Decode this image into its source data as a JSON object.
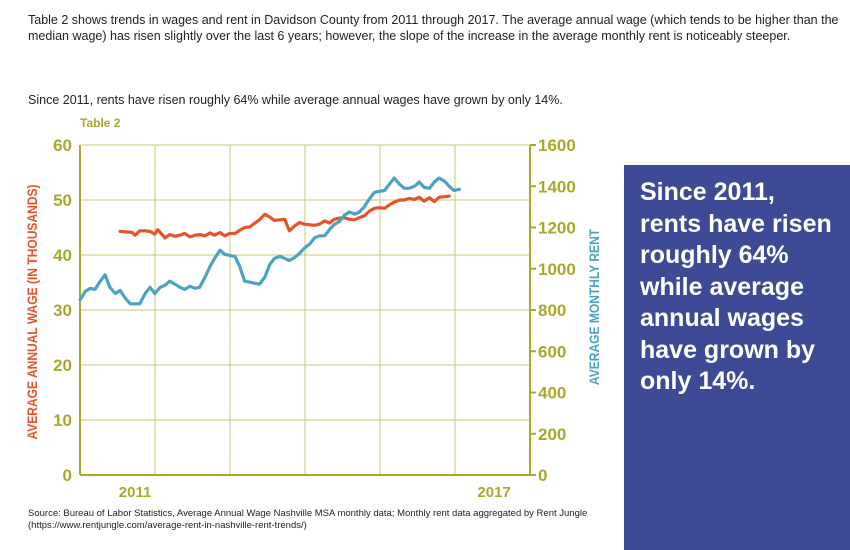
{
  "intro": {
    "paragraph1": "Table 2 shows trends in wages and rent in Davidson County from 2011 through 2017. The average annual wage (which tends to be higher than the median wage) has risen slightly over the last 6 years; however, the slope of the increase in the average monthly rent is noticeably steeper.",
    "paragraph2": "Since 2011, rents have risen roughly 64% while average annual wages have grown by only 14%."
  },
  "chart_label": "Table 2",
  "callout": "Since 2011, rents have risen roughly 64% while average annual wages have grown by only 14%.",
  "source": "Source: Bureau of Labor Statistics, Average Annual Wage Nashville MSA monthly data; Monthly rent data aggregated by Rent Jungle (https://www.rentjungle.com/average-rent-in-nashville-rent-trends/)",
  "colors": {
    "wage": "#e8522a",
    "rent": "#4aa3c0",
    "axis": "#a8a82a",
    "grid": "#c8c870",
    "callout_bg": "#3d4a96"
  },
  "chart_data": {
    "type": "line",
    "xlabel": "",
    "x_tick_labels": [
      "2011",
      "2017"
    ],
    "x_ticks": [
      2011.0,
      2017.0
    ],
    "xlim": [
      2010.08,
      2017.6
    ],
    "grid": true,
    "ylabel_left": "AVERAGE ANNUAL WAGE (IN THOUSANDS)",
    "ylim_left": [
      0,
      60
    ],
    "yticks_left": [
      0,
      10,
      20,
      30,
      40,
      50,
      60
    ],
    "ylabel_right": "AVERAGE MONTHLY RENT",
    "ylim_right": [
      0,
      1600
    ],
    "yticks_right": [
      0,
      200,
      400,
      600,
      800,
      1000,
      1200,
      1400,
      1600
    ],
    "series": [
      {
        "axis": "left",
        "color": "#e8522a",
        "points": [
          [
            2010.75,
            44.3
          ],
          [
            2010.85,
            44.2
          ],
          [
            2010.95,
            44.1
          ],
          [
            2011.0,
            43.6
          ],
          [
            2011.08,
            44.4
          ],
          [
            2011.17,
            44.4
          ],
          [
            2011.25,
            44.3
          ],
          [
            2011.33,
            43.8
          ],
          [
            2011.38,
            44.6
          ],
          [
            2011.5,
            43.1
          ],
          [
            2011.58,
            43.7
          ],
          [
            2011.67,
            43.4
          ],
          [
            2011.75,
            43.6
          ],
          [
            2011.83,
            43.9
          ],
          [
            2011.92,
            43.3
          ],
          [
            2012.0,
            43.6
          ],
          [
            2012.08,
            43.7
          ],
          [
            2012.17,
            43.5
          ],
          [
            2012.25,
            44.0
          ],
          [
            2012.33,
            43.6
          ],
          [
            2012.42,
            44.1
          ],
          [
            2012.5,
            43.5
          ],
          [
            2012.58,
            43.9
          ],
          [
            2012.67,
            43.9
          ],
          [
            2012.75,
            44.5
          ],
          [
            2012.83,
            45.0
          ],
          [
            2012.92,
            45.1
          ],
          [
            2013.0,
            45.8
          ],
          [
            2013.08,
            46.4
          ],
          [
            2013.17,
            47.4
          ],
          [
            2013.25,
            46.9
          ],
          [
            2013.33,
            46.3
          ],
          [
            2013.42,
            46.4
          ],
          [
            2013.5,
            46.5
          ],
          [
            2013.58,
            44.4
          ],
          [
            2013.67,
            45.3
          ],
          [
            2013.75,
            45.9
          ],
          [
            2013.83,
            45.6
          ],
          [
            2013.92,
            45.5
          ],
          [
            2014.0,
            45.4
          ],
          [
            2014.08,
            45.6
          ],
          [
            2014.17,
            46.2
          ],
          [
            2014.25,
            45.8
          ],
          [
            2014.33,
            46.5
          ],
          [
            2014.42,
            46.7
          ],
          [
            2014.5,
            46.8
          ],
          [
            2014.58,
            46.5
          ],
          [
            2014.67,
            46.4
          ],
          [
            2014.75,
            46.8
          ],
          [
            2014.83,
            47.1
          ],
          [
            2014.92,
            48.0
          ],
          [
            2015.0,
            48.5
          ],
          [
            2015.08,
            48.6
          ],
          [
            2015.17,
            48.5
          ],
          [
            2015.25,
            49.1
          ],
          [
            2015.33,
            49.6
          ],
          [
            2015.42,
            50.0
          ],
          [
            2015.5,
            50.0
          ],
          [
            2015.58,
            50.3
          ],
          [
            2015.67,
            50.1
          ],
          [
            2015.75,
            50.5
          ],
          [
            2015.83,
            49.8
          ],
          [
            2015.92,
            50.4
          ],
          [
            2016.0,
            49.7
          ],
          [
            2016.08,
            50.5
          ],
          [
            2016.17,
            50.6
          ],
          [
            2016.25,
            50.7
          ]
        ]
      },
      {
        "axis": "right",
        "color": "#4aa3c0",
        "points": [
          [
            2010.08,
            850
          ],
          [
            2010.17,
            890
          ],
          [
            2010.25,
            905
          ],
          [
            2010.33,
            900
          ],
          [
            2010.42,
            940
          ],
          [
            2010.5,
            970
          ],
          [
            2010.58,
            910
          ],
          [
            2010.67,
            880
          ],
          [
            2010.75,
            895
          ],
          [
            2010.83,
            860
          ],
          [
            2010.92,
            830
          ],
          [
            2011.0,
            830
          ],
          [
            2011.08,
            830
          ],
          [
            2011.17,
            880
          ],
          [
            2011.25,
            910
          ],
          [
            2011.33,
            880
          ],
          [
            2011.42,
            910
          ],
          [
            2011.5,
            920
          ],
          [
            2011.58,
            940
          ],
          [
            2011.67,
            925
          ],
          [
            2011.75,
            910
          ],
          [
            2011.83,
            900
          ],
          [
            2011.92,
            915
          ],
          [
            2012.0,
            905
          ],
          [
            2012.08,
            910
          ],
          [
            2012.17,
            960
          ],
          [
            2012.25,
            1010
          ],
          [
            2012.33,
            1050
          ],
          [
            2012.42,
            1090
          ],
          [
            2012.5,
            1070
          ],
          [
            2012.58,
            1065
          ],
          [
            2012.67,
            1060
          ],
          [
            2012.75,
            1010
          ],
          [
            2012.83,
            940
          ],
          [
            2012.92,
            935
          ],
          [
            2013.0,
            930
          ],
          [
            2013.08,
            925
          ],
          [
            2013.17,
            960
          ],
          [
            2013.25,
            1020
          ],
          [
            2013.33,
            1050
          ],
          [
            2013.42,
            1060
          ],
          [
            2013.5,
            1050
          ],
          [
            2013.58,
            1040
          ],
          [
            2013.67,
            1055
          ],
          [
            2013.75,
            1075
          ],
          [
            2013.83,
            1100
          ],
          [
            2013.92,
            1120
          ],
          [
            2014.0,
            1150
          ],
          [
            2014.08,
            1160
          ],
          [
            2014.17,
            1160
          ],
          [
            2014.25,
            1190
          ],
          [
            2014.33,
            1215
          ],
          [
            2014.42,
            1230
          ],
          [
            2014.5,
            1260
          ],
          [
            2014.58,
            1275
          ],
          [
            2014.67,
            1265
          ],
          [
            2014.75,
            1275
          ],
          [
            2014.83,
            1300
          ],
          [
            2014.92,
            1340
          ],
          [
            2015.0,
            1370
          ],
          [
            2015.08,
            1375
          ],
          [
            2015.17,
            1380
          ],
          [
            2015.25,
            1410
          ],
          [
            2015.33,
            1440
          ],
          [
            2015.42,
            1410
          ],
          [
            2015.5,
            1390
          ],
          [
            2015.58,
            1390
          ],
          [
            2015.67,
            1400
          ],
          [
            2015.75,
            1420
          ],
          [
            2015.83,
            1395
          ],
          [
            2015.92,
            1390
          ],
          [
            2016.0,
            1420
          ],
          [
            2016.08,
            1440
          ],
          [
            2016.17,
            1425
          ],
          [
            2016.25,
            1400
          ],
          [
            2016.33,
            1380
          ],
          [
            2016.42,
            1385
          ]
        ]
      }
    ]
  }
}
